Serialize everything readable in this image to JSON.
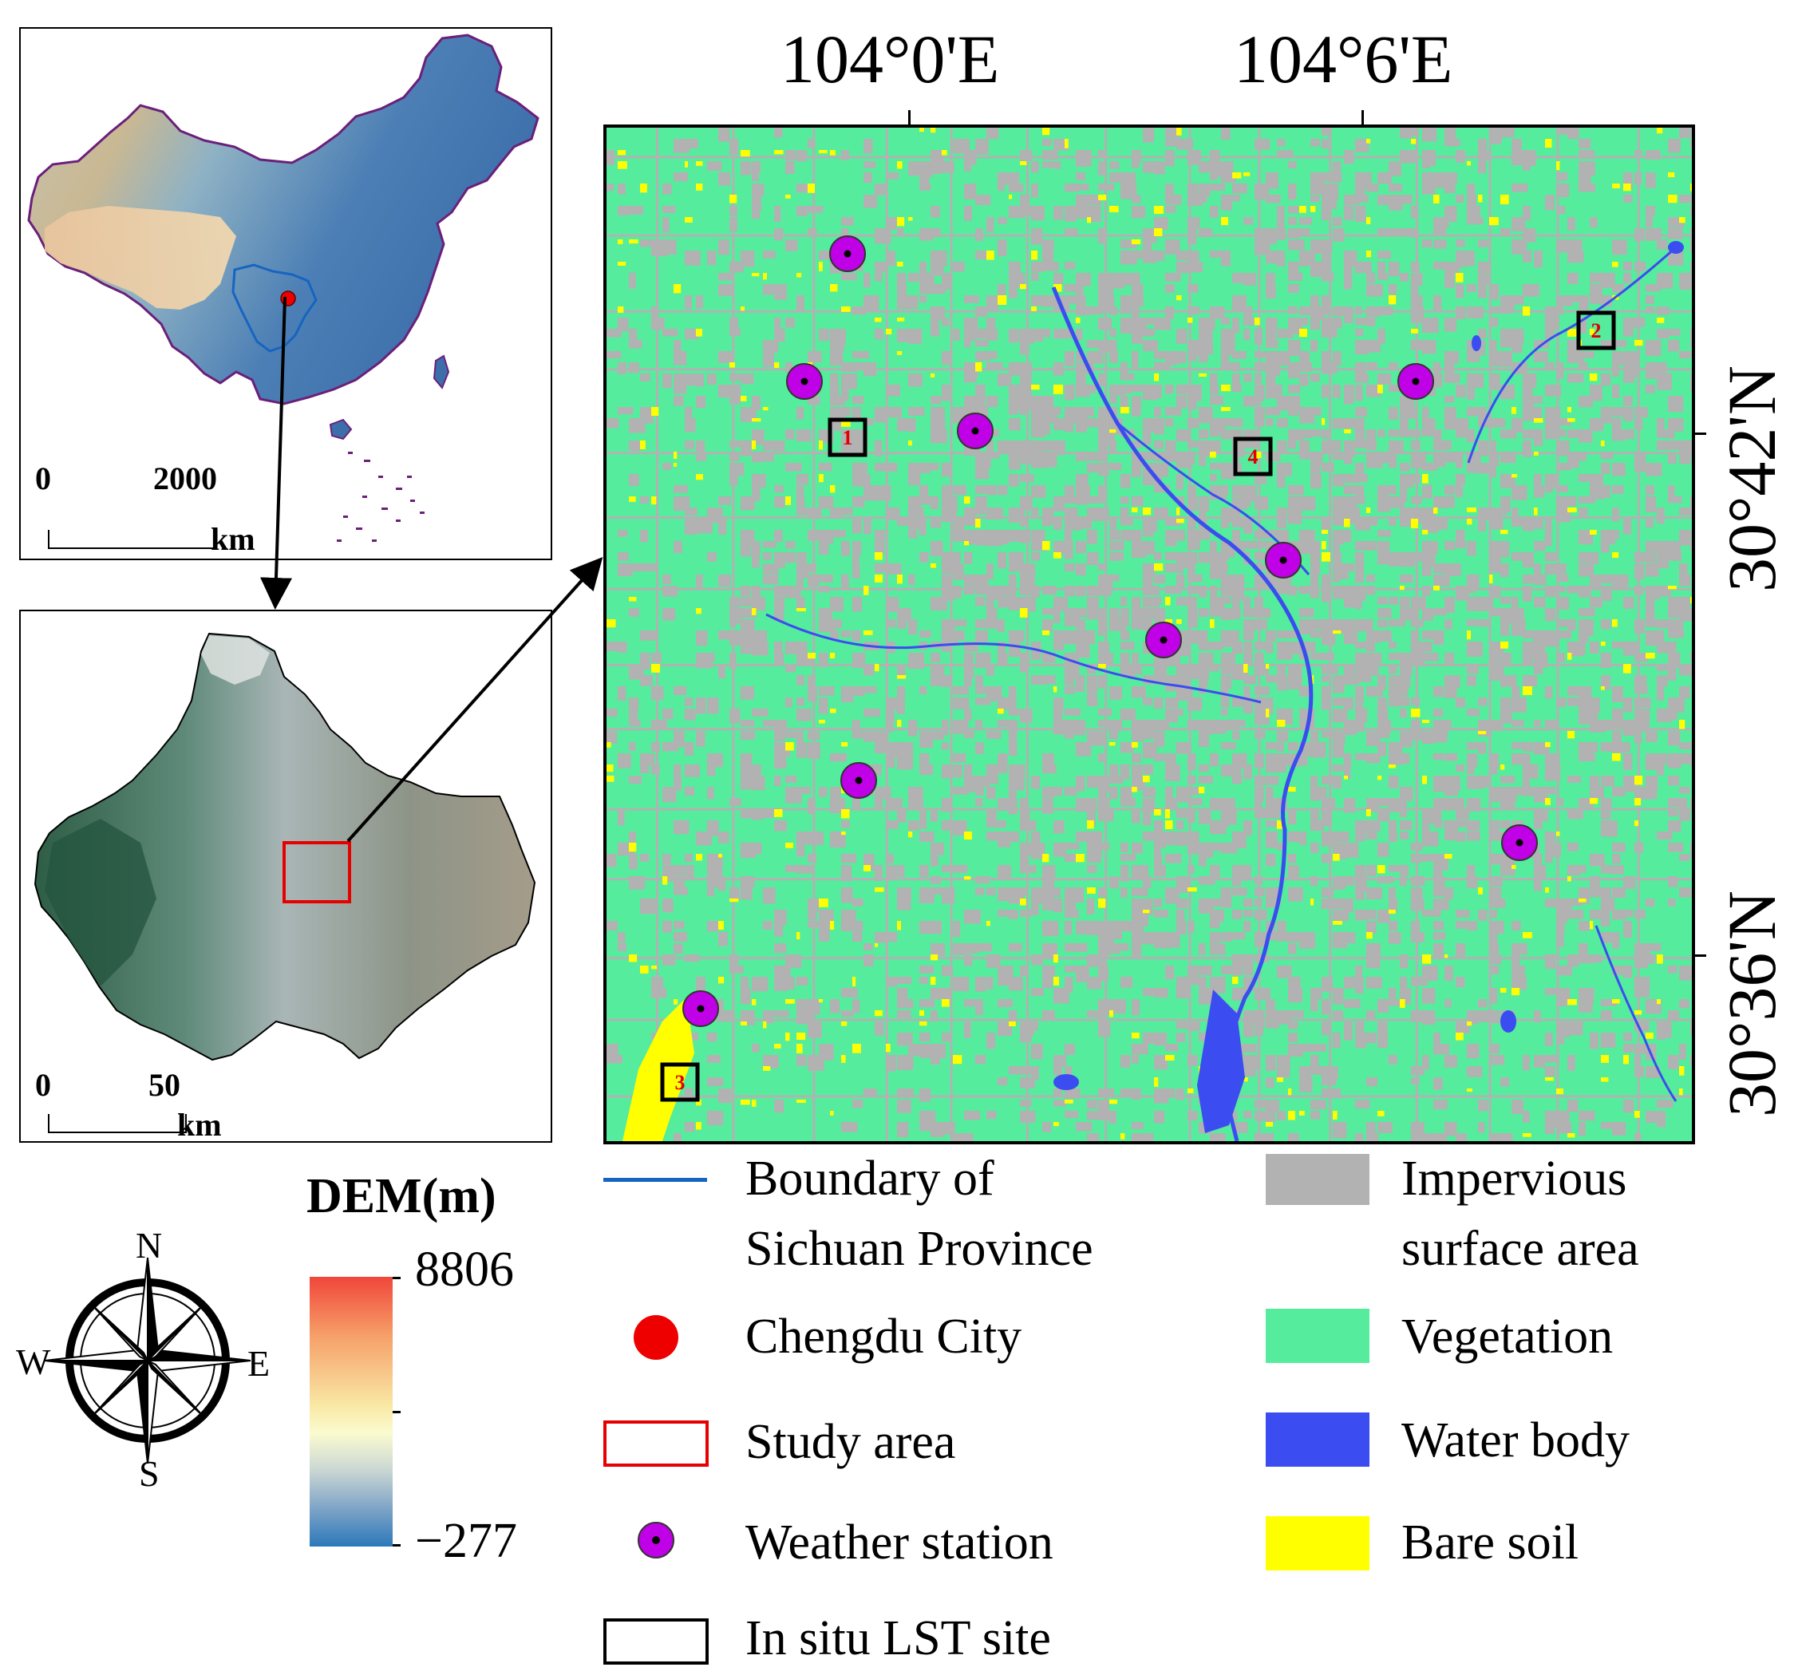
{
  "china_panel": {
    "scale": {
      "start": "0",
      "end": "2000",
      "unit": "km"
    },
    "chengdu_marker_color": "#ee0000",
    "sichuan_boundary_color": "#1565c0"
  },
  "chengdu_panel": {
    "scale": {
      "start": "0",
      "end": "50",
      "unit": "km"
    },
    "study_area_color": "#e60000"
  },
  "main_map": {
    "x_ticks": [
      "104°0'E",
      "104°6'E"
    ],
    "y_ticks": [
      "30°42'N",
      "30°36'N"
    ],
    "colors": {
      "impervious": "#b2b2b2",
      "vegetation": "#55ec9d",
      "water": "#3b4cf0",
      "bare_soil": "#ffff00",
      "station_fill": "#c000e6",
      "site_border": "#000000",
      "site_label": "#e00000"
    },
    "weather_stations": [
      {
        "id": "ws1"
      },
      {
        "id": "ws2"
      },
      {
        "id": "ws3"
      },
      {
        "id": "ws4"
      },
      {
        "id": "ws5"
      },
      {
        "id": "ws6"
      },
      {
        "id": "ws7"
      },
      {
        "id": "ws8"
      },
      {
        "id": "ws9"
      }
    ],
    "lst_sites": [
      {
        "label": "1"
      },
      {
        "label": "4"
      },
      {
        "label": "3"
      },
      {
        "label": "2"
      }
    ]
  },
  "dem_legend": {
    "title": "DEM(m)",
    "max": "8806",
    "min": "−277",
    "gradient": [
      "#f0463a",
      "#f6a069",
      "#f9e9a6",
      "#fbfbd0",
      "#c9d6d3",
      "#7ea4c7",
      "#2b78ba"
    ]
  },
  "compass": {
    "n": "N",
    "s": "S",
    "e": "E",
    "w": "W"
  },
  "legend": {
    "boundary_line": "Boundary of",
    "boundary_line2": "Sichuan Province",
    "chengdu": "Chengdu City",
    "study_area": "Study area",
    "weather_station": "Weather station",
    "lst_site": "In situ LST site",
    "impervious": "Impervious",
    "impervious2": "surface area",
    "vegetation": "Vegetation",
    "water": "Water body",
    "bare_soil": "Bare soil"
  }
}
